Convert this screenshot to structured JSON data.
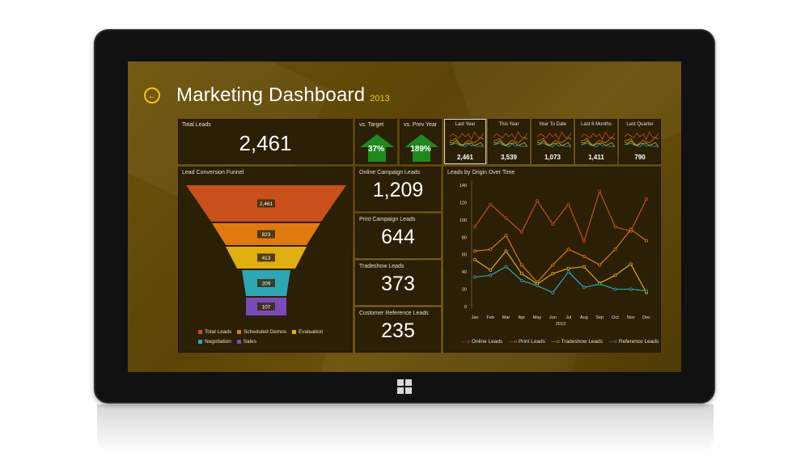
{
  "header": {
    "title": "Marketing Dashboard",
    "year": "2013",
    "back_icon": "back-arrow-icon"
  },
  "total_leads": {
    "label": "Total Leads",
    "value": "2,461"
  },
  "vs_target": {
    "label": "vs. Target",
    "value": "37%"
  },
  "vs_prev_year": {
    "label": "vs. Prev Year",
    "value": "189%"
  },
  "periods": [
    {
      "label": "Last Year",
      "value": "2,461",
      "selected": true
    },
    {
      "label": "This Year",
      "value": "3,539",
      "selected": false
    },
    {
      "label": "Year To Date",
      "value": "1,073",
      "selected": false
    },
    {
      "label": "Last 6 Months",
      "value": "1,411",
      "selected": false
    },
    {
      "label": "Last Quarter",
      "value": "790",
      "selected": false
    }
  ],
  "funnel": {
    "title": "Lead Conversion Funnel",
    "stages": [
      {
        "name": "Total Leads",
        "value": "2,461",
        "color": "#c8501a"
      },
      {
        "name": "Scheduled Demos",
        "value": "823",
        "color": "#e07a10"
      },
      {
        "name": "Evaluation",
        "value": "413",
        "color": "#e0ae10"
      },
      {
        "name": "Negotiation",
        "value": "209",
        "color": "#2fa6b6"
      },
      {
        "name": "Sales",
        "value": "107",
        "color": "#7a4bb8"
      }
    ]
  },
  "kpis": [
    {
      "label": "Online Campaign Leads",
      "value": "1,209"
    },
    {
      "label": "Print Campaign Leads",
      "value": "644"
    },
    {
      "label": "Tradeshow Leads",
      "value": "373"
    },
    {
      "label": "Customer Reference Leads",
      "value": "235"
    }
  ],
  "chart_data": {
    "type": "line",
    "title": "Leads by Origin Over Time",
    "xlabel": "2013",
    "ylabel": "",
    "categories": [
      "Jan",
      "Feb",
      "Mar",
      "Apr",
      "May",
      "Jun",
      "Jul",
      "Aug",
      "Sep",
      "Oct",
      "Nov",
      "Dec"
    ],
    "ylim": [
      0,
      140
    ],
    "yticks": [
      0,
      20,
      40,
      60,
      80,
      100,
      120,
      140
    ],
    "series": [
      {
        "name": "Online Leads",
        "color": "#c8501a",
        "values": [
          92,
          118,
          102,
          86,
          122,
          95,
          118,
          75,
          133,
          92,
          87,
          124
        ]
      },
      {
        "name": "Print Leads",
        "color": "#e07a10",
        "values": [
          64,
          66,
          82,
          48,
          28,
          48,
          66,
          58,
          48,
          66,
          89,
          76
        ]
      },
      {
        "name": "Tradeshow Leads",
        "color": "#e0ae10",
        "values": [
          54,
          42,
          64,
          38,
          26,
          38,
          44,
          46,
          27,
          36,
          49,
          16
        ]
      },
      {
        "name": "Reference Leads",
        "color": "#2fa6b6",
        "values": [
          34,
          36,
          46,
          30,
          24,
          16,
          40,
          22,
          26,
          20,
          20,
          18
        ]
      }
    ],
    "legend_position": "bottom",
    "grid": false
  }
}
